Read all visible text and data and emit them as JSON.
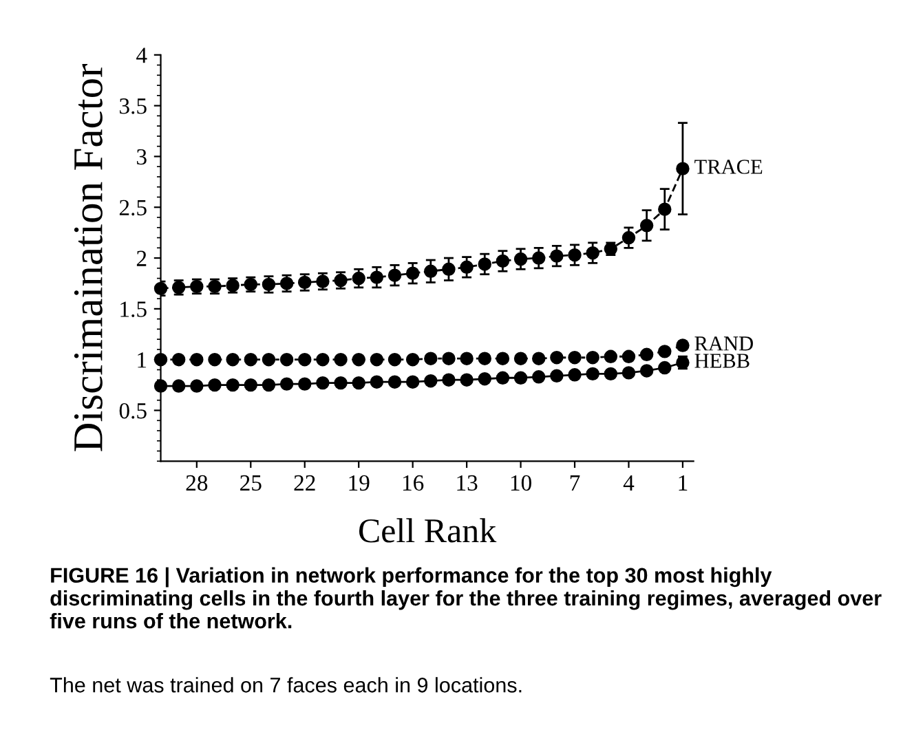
{
  "chart_data": {
    "type": "line",
    "xlabel": "Cell Rank",
    "ylabel": "Discrimaination Factor",
    "x": [
      30,
      29,
      28,
      27,
      26,
      25,
      24,
      23,
      22,
      21,
      20,
      19,
      18,
      17,
      16,
      15,
      14,
      13,
      12,
      11,
      10,
      9,
      8,
      7,
      6,
      5,
      4,
      3,
      2,
      1
    ],
    "xlim": [
      30,
      0.4
    ],
    "xticks": [
      28,
      25,
      22,
      19,
      16,
      13,
      10,
      7,
      4,
      1
    ],
    "ylim": [
      0,
      4
    ],
    "yticks": [
      0.5,
      1,
      1.5,
      2,
      2.5,
      3,
      3.5,
      4
    ],
    "grid": false,
    "legend": false,
    "marker": "circle",
    "series": [
      {
        "name": "TRACE",
        "color": "#000000",
        "line_style": "dashed",
        "values": [
          1.7,
          1.71,
          1.72,
          1.72,
          1.73,
          1.74,
          1.74,
          1.75,
          1.76,
          1.77,
          1.78,
          1.8,
          1.81,
          1.83,
          1.85,
          1.87,
          1.89,
          1.91,
          1.94,
          1.97,
          1.99,
          2.0,
          2.02,
          2.03,
          2.05,
          2.09,
          2.2,
          2.32,
          2.48,
          2.88
        ],
        "errors": [
          0.07,
          0.07,
          0.07,
          0.07,
          0.07,
          0.07,
          0.08,
          0.08,
          0.08,
          0.08,
          0.08,
          0.09,
          0.1,
          0.1,
          0.1,
          0.11,
          0.11,
          0.1,
          0.1,
          0.1,
          0.1,
          0.1,
          0.1,
          0.1,
          0.1,
          0.06,
          0.1,
          0.15,
          0.2,
          0.45
        ]
      },
      {
        "name": "RAND",
        "color": "#000000",
        "line_style": "dotted",
        "values": [
          1.0,
          1.0,
          1.0,
          1.0,
          1.0,
          1.0,
          1.0,
          1.0,
          1.0,
          1.0,
          1.0,
          1.0,
          1.0,
          1.0,
          1.0,
          1.01,
          1.01,
          1.01,
          1.01,
          1.01,
          1.01,
          1.01,
          1.02,
          1.02,
          1.02,
          1.03,
          1.03,
          1.05,
          1.08,
          1.14
        ],
        "errors": [
          null,
          null,
          null,
          null,
          null,
          null,
          null,
          null,
          null,
          null,
          null,
          null,
          null,
          null,
          null,
          null,
          null,
          null,
          null,
          null,
          null,
          null,
          null,
          null,
          null,
          null,
          null,
          null,
          0.02,
          0.04
        ]
      },
      {
        "name": "HEBB",
        "color": "#000000",
        "line_style": "solid",
        "values": [
          0.74,
          0.74,
          0.74,
          0.75,
          0.75,
          0.75,
          0.75,
          0.76,
          0.76,
          0.77,
          0.77,
          0.77,
          0.78,
          0.78,
          0.78,
          0.79,
          0.8,
          0.8,
          0.81,
          0.82,
          0.82,
          0.83,
          0.84,
          0.85,
          0.86,
          0.86,
          0.87,
          0.89,
          0.92,
          0.97
        ],
        "errors": [
          null,
          null,
          null,
          null,
          null,
          null,
          null,
          null,
          null,
          null,
          null,
          null,
          null,
          null,
          null,
          null,
          null,
          null,
          null,
          null,
          null,
          null,
          null,
          null,
          null,
          null,
          null,
          null,
          0.02,
          0.06
        ]
      }
    ],
    "annotations": [
      "FIGURE 16 | Variation in network performance for the top 30 most highly discriminating cells in the fourth layer for the three training regimes, averaged over five runs of the network.",
      "The net was trained on 7 faces each in 9 locations."
    ]
  }
}
